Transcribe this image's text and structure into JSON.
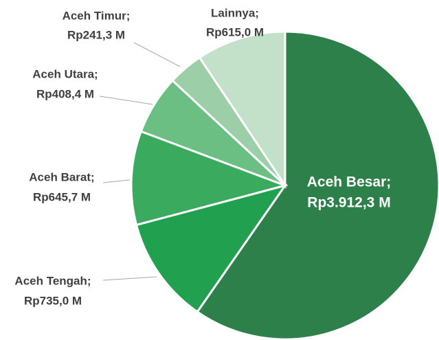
{
  "chart_data": {
    "type": "pie",
    "categories": [
      "Aceh Besar;",
      "Aceh Tengah;",
      "Aceh Barat;",
      "Aceh Utara;",
      "Aceh Timur;",
      "Lainnya;"
    ],
    "values": [
      3912.3,
      735.0,
      645.7,
      408.4,
      241.3,
      615.0
    ],
    "value_labels": [
      "Rp3.912,3 M",
      "Rp735,0 M",
      "Rp645,7 M",
      "Rp408,4 M",
      "Rp241,3 M",
      "Rp615,0 M"
    ],
    "colors": [
      "#2d8049",
      "#21a04f",
      "#3aab5e",
      "#6bbf82",
      "#9ccfa8",
      "#c3e0c8"
    ]
  }
}
